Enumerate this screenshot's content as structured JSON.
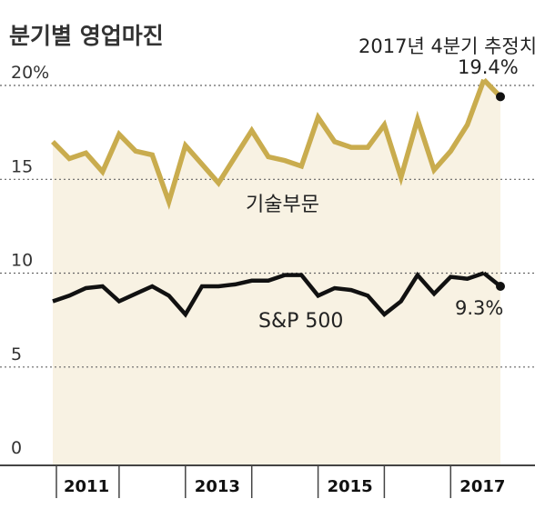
{
  "chart_data": {
    "type": "line",
    "title": "분기별 영업마진",
    "ylim": [
      0,
      20
    ],
    "y_ticks": [
      "20%",
      "15",
      "10",
      "5",
      "0"
    ],
    "x_ticks": [
      "2011",
      "2013",
      "2015",
      "2017"
    ],
    "grid": true,
    "series": [
      {
        "name": "기술부문",
        "color": "#c9ac4e",
        "values": [
          17.0,
          16.1,
          16.4,
          15.4,
          17.4,
          16.5,
          16.3,
          13.8,
          16.8,
          15.8,
          14.8,
          16.2,
          17.6,
          16.2,
          16.0,
          15.7,
          18.3,
          17.0,
          16.7,
          16.7,
          17.9,
          15.1,
          18.2,
          15.5,
          16.5,
          17.9,
          20.3,
          19.4
        ]
      },
      {
        "name": "S&P 500",
        "color": "#111111",
        "values": [
          8.5,
          8.8,
          9.2,
          9.3,
          8.5,
          8.9,
          9.3,
          8.8,
          7.8,
          9.3,
          9.3,
          9.4,
          9.6,
          9.6,
          9.9,
          9.9,
          8.8,
          9.2,
          9.1,
          8.8,
          7.8,
          8.5,
          9.9,
          8.9,
          9.8,
          9.7,
          10.0,
          9.3
        ]
      }
    ],
    "annotations": {
      "headline": "2017년 4분기 추정치",
      "tech_end_value": "19.4%",
      "sp_end_value": "9.3%"
    }
  }
}
